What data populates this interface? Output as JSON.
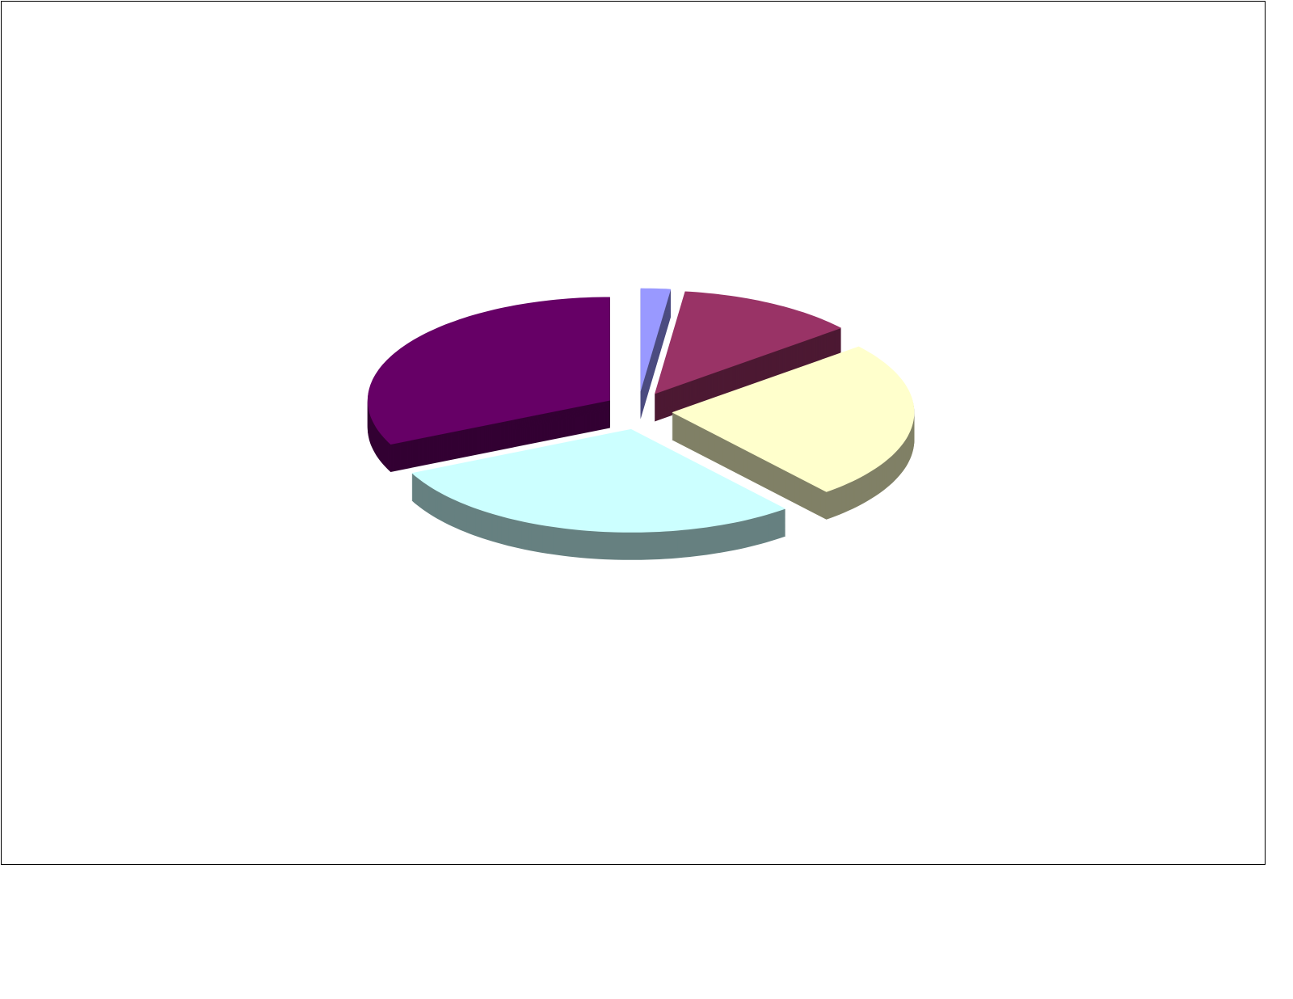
{
  "chart_data": {
    "type": "pie",
    "style": "3d-exploded",
    "title": "",
    "legend": "none",
    "start_angle": "12 o'clock",
    "direction": "clockwise",
    "slices": [
      {
        "value": 2,
        "color": "#9999FF",
        "side_color": "#4C4C80"
      },
      {
        "value": 12,
        "color": "#993366",
        "side_color": "#4C1933"
      },
      {
        "value": 25,
        "color": "#FFFFCC",
        "side_color": "#808066"
      },
      {
        "value": 29,
        "color": "#CCFFFF",
        "side_color": "#668080"
      },
      {
        "value": 32,
        "color": "#660066",
        "side_color": "#330033"
      }
    ]
  }
}
